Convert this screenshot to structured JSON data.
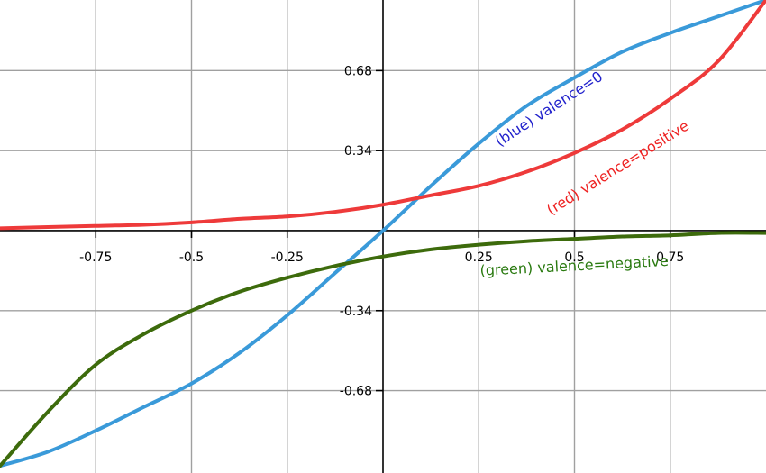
{
  "chart_data": {
    "type": "line",
    "title": "",
    "xlabel": "",
    "ylabel": "",
    "xlim": [
      -1,
      1
    ],
    "ylim": [
      -1.03,
      0.98
    ],
    "grid": true,
    "x_ticks": [
      -0.75,
      -0.5,
      -0.25,
      0.25,
      0.5,
      0.75
    ],
    "x_tick_labels": [
      "-0.75",
      "-0.5",
      "-0.25",
      "0.25",
      "0.5",
      "0.75"
    ],
    "y_ticks": [
      -0.68,
      -0.34,
      0.34,
      0.68
    ],
    "y_tick_labels": [
      "-0.68",
      "-0.34",
      "0.34",
      "0.68"
    ],
    "x": [
      -1,
      -0.875,
      -0.75,
      -0.625,
      -0.5,
      -0.375,
      -0.25,
      -0.125,
      0,
      0.125,
      0.25,
      0.375,
      0.5,
      0.625,
      0.75,
      0.875,
      1
    ],
    "series": [
      {
        "color": "#3a9ad9",
        "values": [
          -1.0,
          -0.94,
          -0.85,
          -0.75,
          -0.65,
          -0.52,
          -0.36,
          -0.18,
          0.0,
          0.19,
          0.37,
          0.53,
          0.65,
          0.76,
          0.84,
          0.91,
          0.98
        ]
      },
      {
        "color": "#ee3a3a",
        "values": [
          0.01,
          0.015,
          0.02,
          0.025,
          0.035,
          0.05,
          0.06,
          0.08,
          0.11,
          0.15,
          0.19,
          0.25,
          0.33,
          0.43,
          0.56,
          0.72,
          0.98
        ]
      },
      {
        "color": "#3d6b0c",
        "values": [
          -1.0,
          -0.77,
          -0.57,
          -0.44,
          -0.34,
          -0.26,
          -0.2,
          -0.15,
          -0.11,
          -0.08,
          -0.06,
          -0.045,
          -0.035,
          -0.025,
          -0.02,
          -0.01,
          -0.01
        ]
      }
    ],
    "annotations": [
      {
        "text": "(blue) valence=0",
        "color": "#2222cc",
        "x": 0.44,
        "y": 0.5,
        "angle": -33
      },
      {
        "text": "(red) valence=positive",
        "color": "#ee2222",
        "x": 0.62,
        "y": 0.25,
        "angle": -32
      },
      {
        "text": "(green) valence=negative",
        "color": "#2a7a10",
        "x": 0.5,
        "y": -0.17,
        "angle": -3
      }
    ]
  }
}
